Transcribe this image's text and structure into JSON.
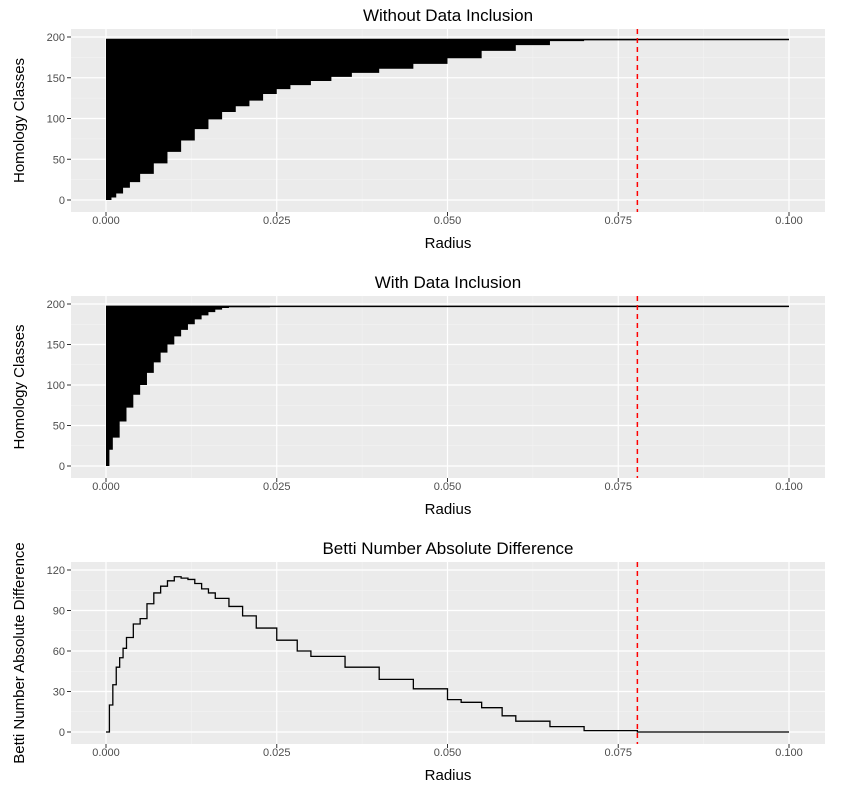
{
  "colors": {
    "panel_bg": "#EBEBEB",
    "grid_major": "#FFFFFF",
    "grid_minor": "#F4F4F4",
    "tick_text": "#4D4D4D",
    "data": "#000000",
    "reference_line": "#FF0000"
  },
  "chart_data": [
    {
      "type": "area",
      "title": "Without Data Inclusion",
      "xlabel": "Radius",
      "ylabel": "Homology Classes",
      "xlim": [
        0,
        0.1
      ],
      "ylim": [
        0,
        200
      ],
      "x_ticks": [
        "0.000",
        "0.025",
        "0.050",
        "0.075",
        "0.100"
      ],
      "y_ticks": [
        "0",
        "50",
        "100",
        "150",
        "200"
      ],
      "grid": true,
      "legend": "none",
      "ceiling": 197,
      "vline_x": 0.0778,
      "series": [
        {
          "style": "filled ribbon between curve and 197",
          "x": [
            0,
            0.0008,
            0.0015,
            0.0025,
            0.0035,
            0.005,
            0.007,
            0.009,
            0.011,
            0.013,
            0.015,
            0.017,
            0.019,
            0.021,
            0.023,
            0.025,
            0.027,
            0.03,
            0.033,
            0.036,
            0.04,
            0.045,
            0.05,
            0.055,
            0.06,
            0.065,
            0.07,
            0.0778,
            0.1
          ],
          "y": [
            0,
            3,
            8,
            15,
            22,
            32,
            45,
            59,
            73,
            87,
            99,
            108,
            115,
            122,
            130,
            136,
            141,
            146,
            151,
            156,
            161,
            167,
            174,
            183,
            190,
            195,
            196,
            197,
            197
          ]
        }
      ]
    },
    {
      "type": "area",
      "title": "With Data Inclusion",
      "xlabel": "Radius",
      "ylabel": "Homology Classes",
      "xlim": [
        0,
        0.1
      ],
      "ylim": [
        0,
        200
      ],
      "x_ticks": [
        "0.000",
        "0.025",
        "0.050",
        "0.075",
        "0.100"
      ],
      "y_ticks": [
        "0",
        "50",
        "100",
        "150",
        "200"
      ],
      "grid": true,
      "legend": "none",
      "ceiling": 197,
      "vline_x": 0.0778,
      "series": [
        {
          "style": "filled ribbon between curve and 197",
          "x": [
            0,
            0.0005,
            0.001,
            0.002,
            0.003,
            0.004,
            0.005,
            0.006,
            0.007,
            0.008,
            0.009,
            0.01,
            0.011,
            0.012,
            0.013,
            0.014,
            0.015,
            0.016,
            0.017,
            0.018,
            0.02,
            0.024,
            0.1
          ],
          "y": [
            0,
            20,
            35,
            55,
            72,
            88,
            100,
            115,
            128,
            140,
            150,
            160,
            168,
            175,
            181,
            186,
            190,
            193,
            195,
            196,
            196,
            197,
            197
          ]
        }
      ]
    },
    {
      "type": "line",
      "title": "Betti Number Absolute Difference",
      "xlabel": "Radius",
      "ylabel": "Betti Number Absolute Difference",
      "xlim": [
        0,
        0.1
      ],
      "ylim": [
        0,
        120
      ],
      "x_ticks": [
        "0.000",
        "0.025",
        "0.050",
        "0.075",
        "0.100"
      ],
      "y_ticks": [
        "0",
        "30",
        "60",
        "90",
        "120"
      ],
      "grid": true,
      "legend": "none",
      "vline_x": 0.0778,
      "series": [
        {
          "x": [
            0,
            0.0005,
            0.001,
            0.0015,
            0.002,
            0.0025,
            0.003,
            0.004,
            0.005,
            0.006,
            0.007,
            0.008,
            0.009,
            0.01,
            0.011,
            0.012,
            0.013,
            0.014,
            0.015,
            0.016,
            0.018,
            0.02,
            0.022,
            0.025,
            0.028,
            0.03,
            0.035,
            0.04,
            0.045,
            0.05,
            0.052,
            0.055,
            0.058,
            0.06,
            0.065,
            0.07,
            0.0778,
            0.1
          ],
          "y": [
            0,
            20,
            35,
            48,
            55,
            62,
            70,
            80,
            84,
            95,
            103,
            108,
            112,
            115,
            114,
            113,
            110,
            106,
            103,
            99,
            93,
            86,
            77,
            68,
            60,
            56,
            48,
            39,
            32,
            24,
            22,
            18,
            12,
            8,
            4,
            1,
            0,
            0
          ]
        }
      ]
    }
  ]
}
